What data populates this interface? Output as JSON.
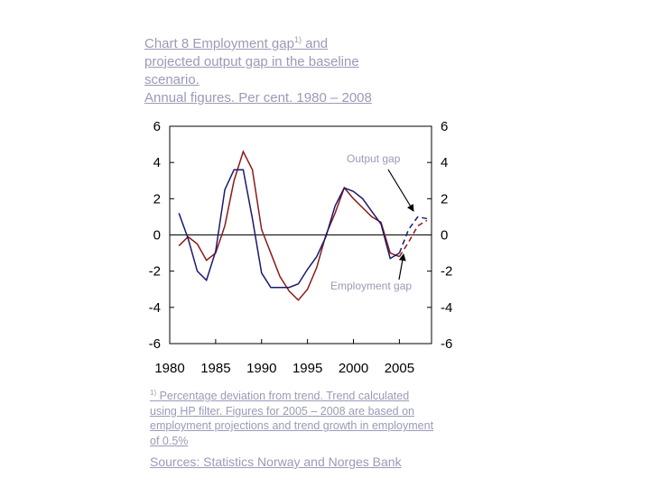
{
  "title": {
    "line1_prefix": "Chart 8",
    "line1_main": "Employment gap",
    "line1_sup": "1)",
    "line1_suffix": " and",
    "line2": "projected output gap in the baseline",
    "line3": "scenario.",
    "line4": "Annual figures. Per cent. 1980 – 2008"
  },
  "footnote": {
    "marker": "1)",
    "line1": " Percentage deviation from trend. Trend calculated",
    "line2": "using HP filter. Figures for 2005 – 2008 are based on",
    "line3": "employment projections and trend growth in employment",
    "line4": "of 0.5%"
  },
  "sources": "Sources: Statistics Norway and Norges Bank",
  "chart_data": {
    "type": "line",
    "x": [
      1981,
      1982,
      1983,
      1984,
      1985,
      1986,
      1987,
      1988,
      1989,
      1990,
      1991,
      1992,
      1993,
      1994,
      1995,
      1996,
      1997,
      1998,
      1999,
      2000,
      2001,
      2002,
      2003,
      2004,
      2005,
      2006,
      2007,
      2008
    ],
    "x_ticks": [
      1980,
      1985,
      1990,
      1995,
      2000,
      2005
    ],
    "x_tick_labels": [
      "1980",
      "1985",
      "1990",
      "1995",
      "2000",
      "2005"
    ],
    "xlim": [
      1980,
      2008.5
    ],
    "ylim": [
      -6,
      6
    ],
    "y_ticks": [
      -6,
      -4,
      -2,
      0,
      2,
      4,
      6
    ],
    "y_tick_labels": [
      "-6",
      "-4",
      "-2",
      "0",
      "2",
      "4",
      "6"
    ],
    "grid": false,
    "series": [
      {
        "name": "Output gap",
        "color": "#8b1a1a",
        "values": [
          -0.6,
          -0.1,
          -0.5,
          -1.4,
          -1.0,
          0.5,
          3.0,
          4.6,
          3.6,
          0.3,
          -1.0,
          -2.3,
          -3.1,
          -3.6,
          -3.0,
          -1.8,
          0.0,
          1.2,
          2.6,
          2.0,
          1.5,
          1.0,
          0.7,
          -1.0,
          -1.2,
          -0.4,
          0.5,
          0.8
        ],
        "projection_start_index": 24,
        "projected_values": [
          -1.2,
          -0.4,
          0.5,
          0.8
        ]
      },
      {
        "name": "Employment gap",
        "color": "#1a1a6e",
        "values": [
          1.2,
          -0.2,
          -2.0,
          -2.5,
          -0.9,
          2.5,
          3.6,
          3.6,
          0.9,
          -2.1,
          -2.9,
          -2.9,
          -2.9,
          -2.7,
          -1.9,
          -1.2,
          -0.1,
          1.6,
          2.6,
          2.4,
          2.0,
          1.3,
          0.6,
          -1.3,
          -1.0,
          0.3,
          1.0,
          0.9
        ],
        "projection_start_index": 24,
        "projected_values": [
          -1.0,
          0.3,
          1.0,
          0.9
        ]
      }
    ]
  }
}
